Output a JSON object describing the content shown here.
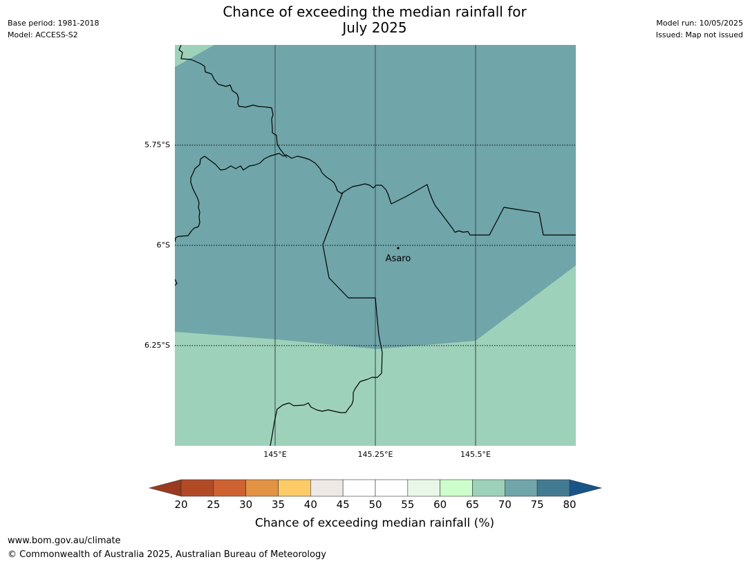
{
  "header": {
    "title_line1": "Chance of exceeding the median rainfall for",
    "title_line2": "July 2025",
    "base_period": "Base period: 1981-2018",
    "model": "Model: ACCESS-S2",
    "model_run": "Model run: 10/05/2025",
    "issued": "Issued: Map not issued"
  },
  "map": {
    "lat_labels": [
      "5.75°S",
      "6°S",
      "6.25°S"
    ],
    "lon_labels": [
      "145°E",
      "145.25°E",
      "145.5°E"
    ],
    "place_name": "Asaro",
    "region_colors": {
      "70-75": "#70a5a9",
      "65-70": "#9ed1b9"
    }
  },
  "colorbar": {
    "label": "Chance of exceeding median rainfall (%)",
    "ticks": [
      "20",
      "25",
      "30",
      "35",
      "40",
      "45",
      "50",
      "55",
      "60",
      "65",
      "70",
      "75",
      "80"
    ],
    "colors": [
      "#b24a26",
      "#cf6232",
      "#e39344",
      "#fecb66",
      "#eee9e5",
      "#ffffff",
      "#ffffff",
      "#e9f7e9",
      "#ccfdcb",
      "#9ed1b9",
      "#70a5a9",
      "#437b93"
    ],
    "under_color": "#9a3a1f",
    "over_color": "#185488"
  },
  "footer": {
    "url": "www.bom.gov.au/climate",
    "copyright": "© Commonwealth of Australia 2025, Australian Bureau of Meteorology"
  }
}
